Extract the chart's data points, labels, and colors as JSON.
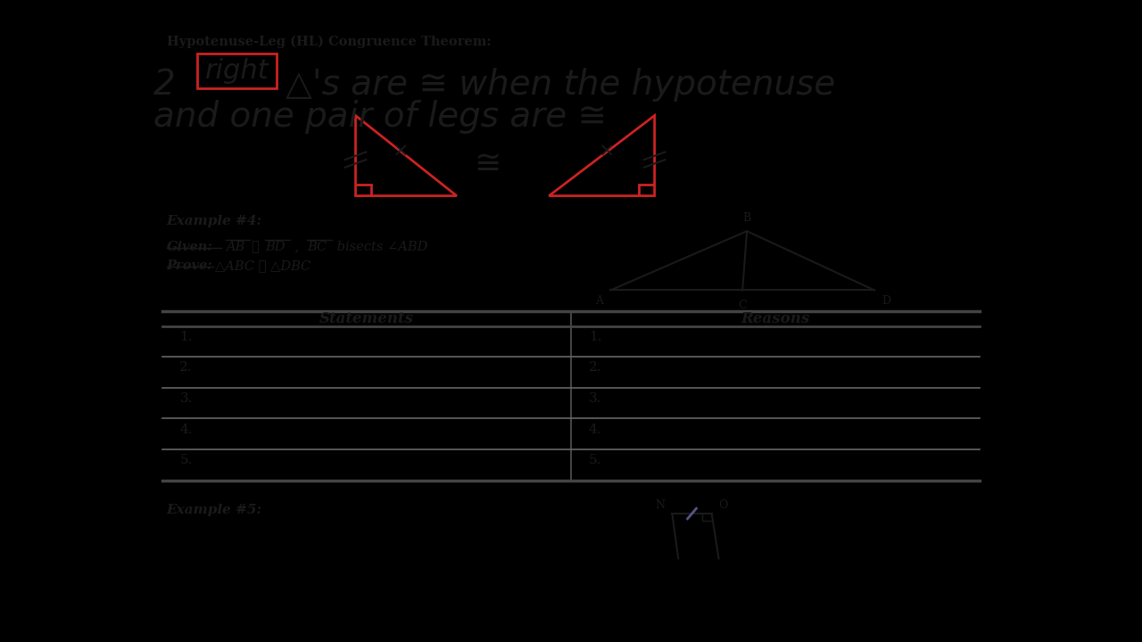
{
  "bg_color": "#000000",
  "paper_color": "#f8f8f4",
  "title_text": "Hypotenuse-Leg (HL) Congruence Theorem:",
  "right_box_word": "right",
  "example4_label": "Example #4:",
  "given_label": "Given:",
  "prove_label": "Prove:",
  "given_rest": "  AB ≅ BD ,  BC bisects ∠ABD",
  "prove_rest": "  △ABC ≅ △DBC",
  "statements_header": "Statements",
  "reasons_header": "Reasons",
  "rows": [
    "1.",
    "2.",
    "3.",
    "4.",
    "5."
  ],
  "example5_label": "Example #5:"
}
